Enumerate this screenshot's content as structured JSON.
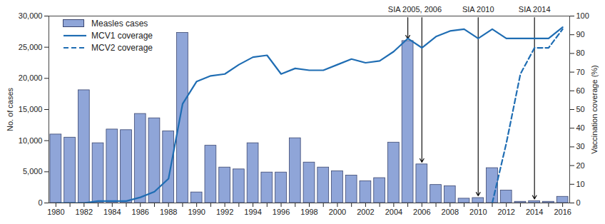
{
  "chart_data": {
    "type": "bar",
    "categories": [
      "1980",
      null,
      "1982",
      null,
      "1984",
      null,
      "1986",
      null,
      "1988",
      null,
      "1990",
      null,
      "1992",
      null,
      "1994",
      null,
      "1996",
      null,
      "1998",
      null,
      "2000",
      null,
      "2002",
      null,
      "2004",
      null,
      "2006",
      null,
      "2008",
      null,
      "2010",
      null,
      "2012",
      null,
      "2014",
      null,
      "2016"
    ],
    "series": [
      {
        "name": "Measles cases",
        "type": "bar",
        "color": "#8fa5d8",
        "values": [
          11000,
          10500,
          18100,
          9600,
          11800,
          11700,
          14300,
          13600,
          11500,
          27300,
          1700,
          9200,
          5700,
          5400,
          9600,
          4900,
          4900,
          10400,
          6500,
          5700,
          5100,
          4400,
          3500,
          4000,
          9700,
          26000,
          6200,
          2900,
          2700,
          700,
          800,
          5600,
          2000,
          200,
          300,
          200,
          1000
        ]
      },
      {
        "name": "MCV1 coverage",
        "type": "line",
        "axis": "y2",
        "color": "#1f6db3",
        "line_style": "solid",
        "values": [
          0,
          0,
          0,
          1,
          1,
          1,
          3,
          6,
          13,
          53,
          65,
          68,
          69,
          74,
          78,
          79,
          69,
          72,
          71,
          71,
          74,
          77,
          75,
          76,
          81,
          88,
          83,
          89,
          92,
          93,
          88,
          93,
          88,
          88,
          88,
          88,
          94
        ]
      },
      {
        "name": "MCV2 coverage",
        "type": "line",
        "axis": "y2",
        "color": "#1f6db3",
        "line_style": "dashed",
        "values": [
          null,
          null,
          null,
          null,
          null,
          null,
          null,
          null,
          null,
          null,
          null,
          null,
          null,
          null,
          null,
          null,
          null,
          null,
          null,
          null,
          null,
          null,
          null,
          null,
          null,
          null,
          null,
          null,
          null,
          null,
          null,
          0,
          32,
          69,
          83,
          83,
          93
        ]
      }
    ],
    "ylabel": "No. of cases",
    "y2label": "Vaccination coverage (%)",
    "ylim": [
      0,
      30000
    ],
    "yticks": [
      0,
      {
        "value": 5000,
        "label": "5,000"
      },
      {
        "value": 10000,
        "label": "10,000"
      },
      {
        "value": 15000,
        "label": "15,000"
      },
      {
        "value": 20000,
        "label": "20,000"
      },
      {
        "value": 25000,
        "label": "25,000"
      },
      {
        "value": 30000,
        "label": "30,000"
      }
    ],
    "y2lim": [
      0,
      100
    ],
    "y2ticks": [
      0,
      10,
      20,
      30,
      40,
      50,
      60,
      70,
      80,
      90,
      100
    ],
    "legend": "upper left",
    "annotations": [
      {
        "text": "SIA 2005, 2006",
        "targets": [
          25,
          26
        ]
      },
      {
        "text": "SIA 2010",
        "targets": [
          30
        ]
      },
      {
        "text": "SIA 2014",
        "targets": [
          34
        ]
      }
    ]
  }
}
